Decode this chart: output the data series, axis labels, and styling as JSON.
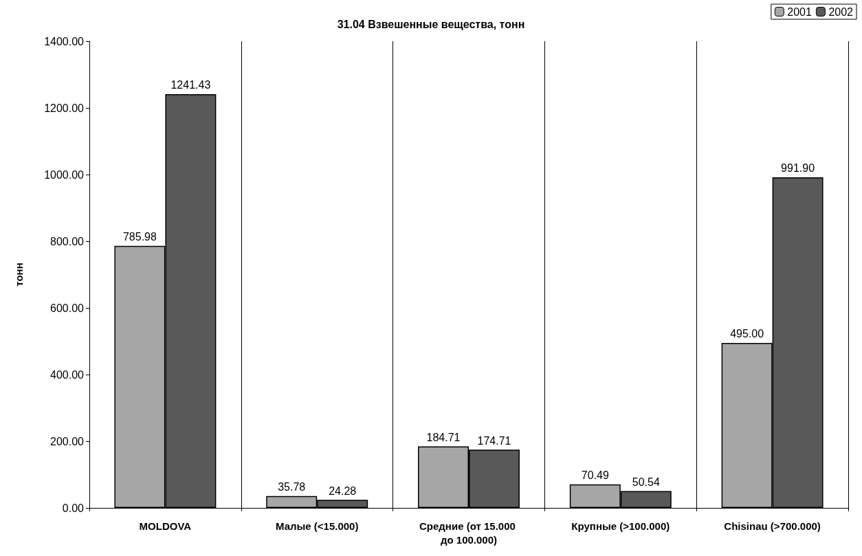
{
  "chart_data": {
    "type": "bar",
    "title": "31.04 Взвешенные вещества, тонн",
    "ylabel": "тонн",
    "categories": [
      "MOLDOVA",
      "Малые (<15.000)",
      "Средние (от 15.000 до 100.000)",
      "Крупные (>100.000)",
      "Chisinau (>700.000)"
    ],
    "series": [
      {
        "name": "2001",
        "color": "#a6a6a6",
        "values": [
          785.98,
          35.78,
          184.71,
          70.49,
          495.0
        ],
        "value_labels": [
          "785.98",
          "35.78",
          "184.71",
          "70.49",
          "495.00"
        ]
      },
      {
        "name": "2002",
        "color": "#595959",
        "values": [
          1241.43,
          24.28,
          174.71,
          50.54,
          991.9
        ],
        "value_labels": [
          "1241.43",
          "24.28",
          "174.71",
          "50.54",
          "991.90"
        ]
      }
    ],
    "ylim": [
      0,
      1400
    ],
    "yticks": [
      {
        "value": 0,
        "label": "0.00"
      },
      {
        "value": 200,
        "label": "200.00"
      },
      {
        "value": 400,
        "label": "400.00"
      },
      {
        "value": 600,
        "label": "600.00"
      },
      {
        "value": 800,
        "label": "800.00"
      },
      {
        "value": 1000,
        "label": "1000.00"
      },
      {
        "value": 1200,
        "label": "1200.00"
      },
      {
        "value": 1400,
        "label": "1400.00"
      }
    ],
    "grid": "x",
    "legend": "top right"
  }
}
